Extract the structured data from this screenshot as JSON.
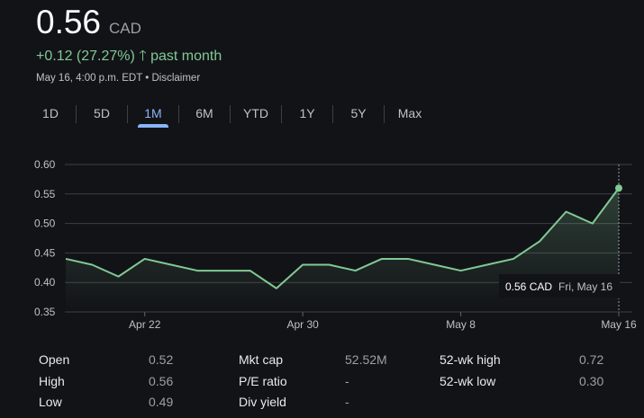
{
  "header": {
    "price": "0.56",
    "currency": "CAD",
    "change": "+0.12 (27.27%)",
    "change_icon": "arrow-up-icon",
    "change_period": "past month",
    "timestamp": "May 16, 4:00 p.m. EDT",
    "separator": "•",
    "disclaimer": "Disclaimer"
  },
  "tabs": [
    {
      "label": "1D"
    },
    {
      "label": "5D"
    },
    {
      "label": "1M",
      "active": true
    },
    {
      "label": "6M"
    },
    {
      "label": "YTD"
    },
    {
      "label": "1Y"
    },
    {
      "label": "5Y"
    },
    {
      "label": "Max"
    }
  ],
  "colors": {
    "line": "#81c995",
    "active_tab": "#8ab4f8",
    "background": "#121317"
  },
  "chart_data": {
    "type": "line",
    "x": [
      "Apr 16",
      "Apr 17",
      "Apr 21",
      "Apr 22",
      "Apr 23",
      "Apr 24",
      "Apr 25",
      "Apr 28",
      "Apr 29",
      "Apr 30",
      "May 1",
      "May 2",
      "May 5",
      "May 6",
      "May 7",
      "May 8",
      "May 9",
      "May 12",
      "May 13",
      "May 14",
      "May 15",
      "May 16"
    ],
    "values": [
      0.44,
      0.43,
      0.41,
      0.44,
      0.43,
      0.42,
      0.42,
      0.42,
      0.39,
      0.43,
      0.43,
      0.42,
      0.44,
      0.44,
      0.43,
      0.42,
      0.43,
      0.44,
      0.47,
      0.52,
      0.5,
      0.56
    ],
    "ylim": [
      0.35,
      0.6
    ],
    "yticks": [
      "0.60",
      "0.55",
      "0.50",
      "0.45",
      "0.40",
      "0.35"
    ],
    "xticks": [
      {
        "label": "Apr 22",
        "index": 3
      },
      {
        "label": "Apr 30",
        "index": 9
      },
      {
        "label": "May 8",
        "index": 15
      },
      {
        "label": "May 16",
        "index": 21
      }
    ],
    "grid": true,
    "tooltip": {
      "value": "0.56 CAD",
      "date": "Fri, May 16"
    }
  },
  "stats": [
    [
      {
        "label": "Open",
        "value": "0.52"
      },
      {
        "label": "Mkt cap",
        "value": "52.52M"
      },
      {
        "label": "52-wk high",
        "value": "0.72"
      }
    ],
    [
      {
        "label": "High",
        "value": "0.56"
      },
      {
        "label": "P/E ratio",
        "value": "-"
      },
      {
        "label": "52-wk low",
        "value": "0.30"
      }
    ],
    [
      {
        "label": "Low",
        "value": "0.49"
      },
      {
        "label": "Div yield",
        "value": "-"
      }
    ]
  ]
}
